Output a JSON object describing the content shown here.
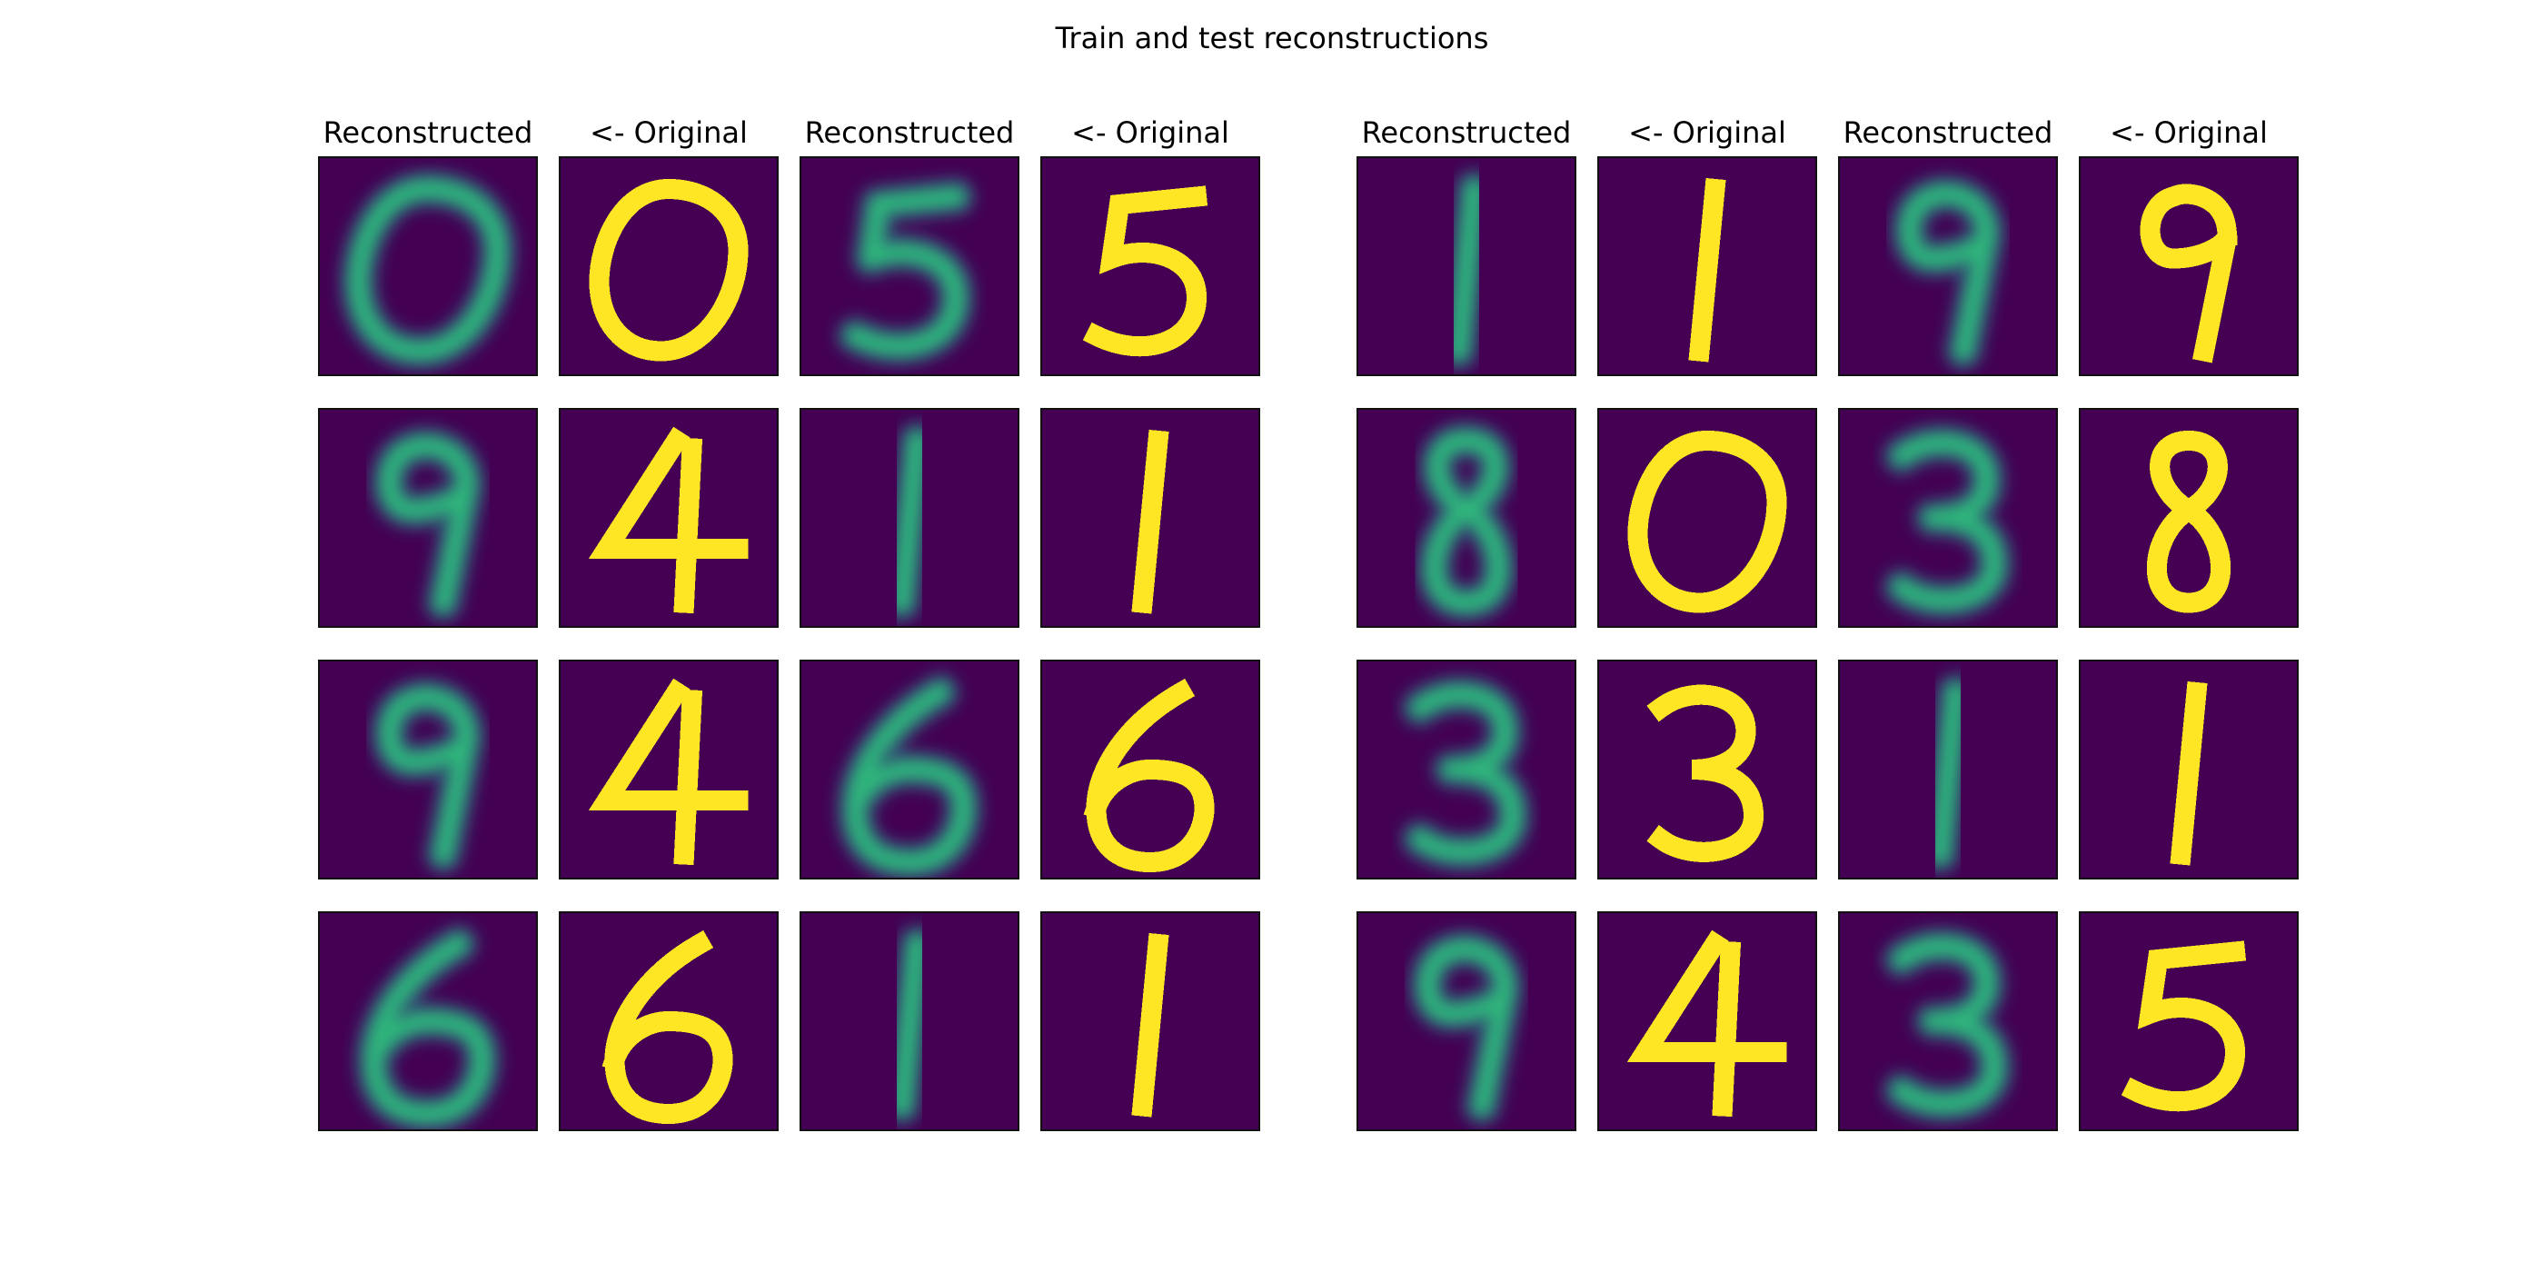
{
  "figure": {
    "title": "Train and test reconstructions"
  },
  "columns": [
    "Reconstructed",
    "<- Original",
    "Reconstructed",
    "<- Original",
    "Reconstructed",
    "<- Original",
    "Reconstructed",
    "<- Original"
  ],
  "colors": {
    "background": "#440154",
    "reconstruction_stroke": "#2fb47c",
    "reconstruction_glow": "#21918c",
    "original_stroke": "#fde725",
    "axes_frame": "#111111"
  },
  "panels": {
    "left": {
      "rows": [
        [
          "0",
          "0",
          "5",
          "5"
        ],
        [
          "9",
          "4",
          "1",
          "1"
        ],
        [
          "9",
          "4",
          "6",
          "6"
        ],
        [
          "6",
          "6",
          "1",
          "1"
        ]
      ]
    },
    "right": {
      "rows": [
        [
          "1",
          "1",
          "9",
          "9"
        ],
        [
          "8",
          "0",
          "3",
          "8"
        ],
        [
          "3",
          "3",
          "1",
          "1"
        ],
        [
          "9",
          "4",
          "3",
          "5"
        ]
      ]
    }
  }
}
